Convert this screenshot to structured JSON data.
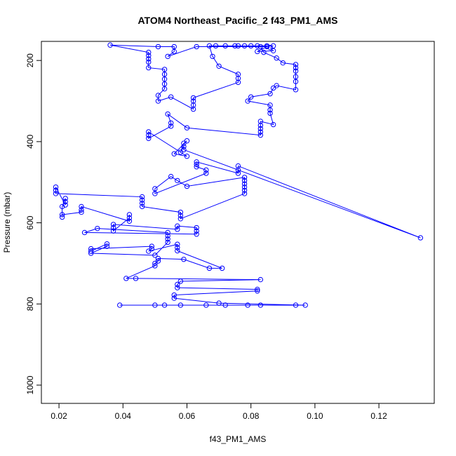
{
  "chart_data": {
    "type": "line",
    "markers": true,
    "title": "ATOM4 Northeast_Pacific_2 f43_PM1_AMS",
    "x_label": "f43_PM1_AMS",
    "y_label": "Pressure (mbar)",
    "color": "#0000ff",
    "xlim": [
      0.0145,
      0.1373
    ],
    "ylim": [
      1045,
      153
    ],
    "y_inverted": true,
    "xticks": [
      0.02,
      0.04,
      0.06,
      0.08,
      {
        "value": 0.1,
        "label": "0.10"
      },
      0.12
    ],
    "yticks": [
      200,
      400,
      600,
      800,
      1000
    ],
    "x": [
      0.039,
      0.05,
      0.053,
      0.058,
      0.066,
      0.072,
      0.079,
      0.083,
      0.094,
      0.097,
      0.07,
      0.056,
      0.056,
      0.082,
      0.082,
      0.057,
      0.057,
      0.058,
      0.083,
      0.044,
      0.041,
      0.05,
      0.05,
      0.051,
      0.051,
      0.059,
      0.067,
      0.071,
      0.057,
      0.057,
      0.057,
      0.048,
      0.049,
      0.049,
      0.03,
      0.03,
      0.035,
      0.035,
      0.03,
      0.05,
      0.054,
      0.054,
      0.054,
      0.054,
      0.032,
      0.028,
      0.063,
      0.063,
      0.063,
      0.057,
      0.057,
      0.037,
      0.037,
      0.037,
      0.042,
      0.042,
      0.042,
      0.027,
      0.027,
      0.027,
      0.021,
      0.021,
      0.021,
      0.022,
      0.022,
      0.022,
      0.019,
      0.019,
      0.019,
      0.046,
      0.046,
      0.046,
      0.046,
      0.058,
      0.058,
      0.058,
      0.078,
      0.078,
      0.078,
      0.078,
      0.078,
      0.078,
      0.06,
      0.057,
      0.055,
      0.05,
      0.05,
      0.066,
      0.066,
      0.063,
      0.063,
      0.063,
      0.076,
      0.076,
      0.076,
      0.133,
      0.059,
      0.059,
      0.058,
      0.059,
      0.06,
      0.056,
      0.06,
      0.048,
      0.048,
      0.048,
      0.055,
      0.055,
      0.054,
      0.06,
      0.083,
      0.083,
      0.083,
      0.083,
      0.083,
      0.087,
      0.086,
      0.086,
      0.086,
      0.079,
      0.08,
      0.086,
      0.087,
      0.088,
      0.094,
      0.094,
      0.094,
      0.094,
      0.094,
      0.094,
      0.09,
      0.088,
      0.084,
      0.083,
      0.087,
      0.085,
      0.082,
      0.08,
      0.078,
      0.076,
      0.075,
      0.072,
      0.069,
      0.067,
      0.068,
      0.07,
      0.076,
      0.076,
      0.076,
      0.062,
      0.062,
      0.062,
      0.062,
      0.055,
      0.051,
      0.051,
      0.053,
      0.053,
      0.053,
      0.053,
      0.053,
      0.048,
      0.048,
      0.048,
      0.048,
      0.048,
      0.036,
      0.051,
      0.056,
      0.056,
      0.054,
      0.063,
      0.085,
      0.082,
      0.087,
      0.086
    ],
    "values": [
      803,
      803,
      803,
      803,
      803,
      803,
      803,
      803,
      803,
      803,
      798,
      786,
      778,
      768,
      764,
      760,
      752,
      744,
      740,
      737,
      737,
      706,
      700,
      694,
      688,
      690,
      712,
      712,
      669,
      661,
      653,
      670,
      664,
      658,
      664,
      670,
      652,
      658,
      675,
      680,
      648,
      640,
      632,
      624,
      614,
      624,
      628,
      620,
      612,
      608,
      616,
      604,
      612,
      620,
      588,
      580,
      596,
      560,
      568,
      574,
      580,
      586,
      560,
      540,
      548,
      556,
      512,
      520,
      528,
      536,
      544,
      552,
      560,
      574,
      582,
      590,
      528,
      520,
      512,
      504,
      496,
      488,
      510,
      496,
      486,
      516,
      528,
      478,
      470,
      462,
      456,
      450,
      478,
      470,
      460,
      637,
      420,
      412,
      426,
      404,
      398,
      430,
      436,
      376,
      384,
      392,
      362,
      354,
      332,
      366,
      384,
      376,
      368,
      360,
      350,
      358,
      330,
      322,
      310,
      300,
      290,
      282,
      268,
      262,
      272,
      252,
      240,
      226,
      218,
      210,
      206,
      194,
      180,
      166,
      164,
      164,
      164,
      164,
      164,
      164,
      164,
      164,
      164,
      164,
      190,
      214,
      234,
      244,
      254,
      292,
      300,
      310,
      320,
      290,
      300,
      286,
      270,
      258,
      246,
      234,
      222,
      218,
      204,
      196,
      188,
      180,
      162,
      166,
      166,
      178,
      190,
      166,
      166,
      178,
      176,
      168
    ]
  }
}
